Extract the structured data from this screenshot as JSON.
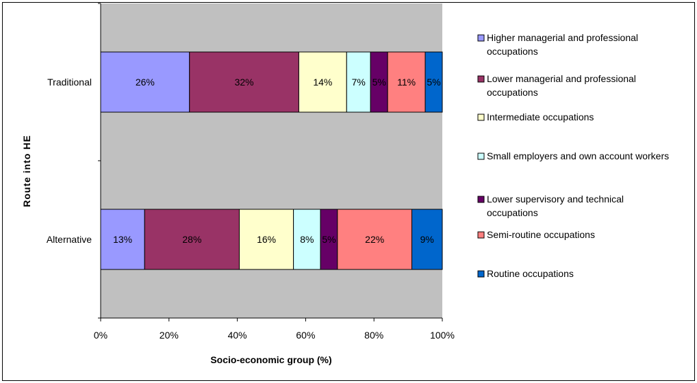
{
  "chart_data": {
    "type": "bar",
    "orientation": "horizontal",
    "stacked": "percent",
    "xlabel": "Socio-economic group (%)",
    "ylabel": "Route into HE",
    "xlim": [
      0,
      100
    ],
    "x_ticks": [
      "0%",
      "20%",
      "40%",
      "60%",
      "80%",
      "100%"
    ],
    "categories": [
      "Traditional",
      "Alternative"
    ],
    "legend_position": "right",
    "grid": false,
    "plot_background": "#c0c0c0",
    "series": [
      {
        "name": "Higher managerial and professional occupations",
        "color": "#9999ff",
        "values": [
          26,
          13
        ],
        "labels": [
          "26%",
          "13%"
        ]
      },
      {
        "name": "Lower managerial and professional occupations",
        "color": "#993366",
        "values": [
          32,
          28
        ],
        "labels": [
          "32%",
          "28%"
        ]
      },
      {
        "name": "Intermediate occupations",
        "color": "#ffffcc",
        "values": [
          14,
          16
        ],
        "labels": [
          "14%",
          "16%"
        ]
      },
      {
        "name": "Small employers and own account workers",
        "color": "#ccffff",
        "values": [
          7,
          8
        ],
        "labels": [
          "7%",
          "8%"
        ]
      },
      {
        "name": "Lower supervisory and technical occupations",
        "color": "#660066",
        "values": [
          5,
          5
        ],
        "labels": [
          "5%",
          "5%"
        ]
      },
      {
        "name": "Semi-routine occupations",
        "color": "#ff8080",
        "values": [
          11,
          22
        ],
        "labels": [
          "11%",
          "22%"
        ]
      },
      {
        "name": "Routine occupations",
        "color": "#0066cc",
        "values": [
          5,
          9
        ],
        "labels": [
          "5%",
          "9%"
        ]
      }
    ]
  }
}
